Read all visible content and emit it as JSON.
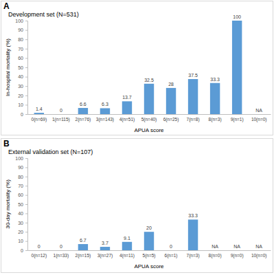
{
  "chart_data": [
    {
      "type": "bar",
      "annotations": [
        {
          "text": "A"
        }
      ],
      "title": "Development set (N=531)",
      "y_label": "In-hospital mortality (%)",
      "x_label": "APUA score",
      "categories": [
        "0(n=69)",
        "1(n=115)",
        "2(n=76)",
        "3(n=143)",
        "4(n=51)",
        "5(n=40)",
        "6(n=25)",
        "7(n=8)",
        "8(n=3)",
        "9(n=1)",
        "10(n=0)"
      ],
      "values": [
        1.4,
        0,
        6.6,
        6.3,
        13.7,
        32.5,
        28,
        37.5,
        33.3,
        100,
        null
      ],
      "value_labels": [
        "1.4",
        "0",
        "6.6",
        "6.3",
        "13.7",
        "32.5",
        "28",
        "37.5",
        "33.3",
        "100",
        "NA"
      ],
      "color": "#5b9bd5",
      "ylim": [
        0,
        100
      ],
      "yticks": [
        0,
        10,
        20,
        30,
        40,
        50,
        60,
        70,
        80,
        90,
        100
      ],
      "data_labels": true,
      "grid": false
    },
    {
      "type": "bar",
      "annotations": [
        {
          "text": "B"
        }
      ],
      "title": "External validation set (N=107)",
      "y_label": "30-day mortality (%)",
      "x_label": "APUA score",
      "categories": [
        "0(n=12)",
        "1(n=33)",
        "2(n=15)",
        "3(n=27)",
        "4(n=11)",
        "5(n=5)",
        "6(n=1)",
        "7(n=3)",
        "8(n=0)",
        "9(n=0)",
        "10(n=0)"
      ],
      "values": [
        0,
        0,
        6.7,
        3.7,
        9.1,
        20,
        0,
        33.3,
        null,
        null,
        null
      ],
      "value_labels": [
        "0",
        "0",
        "6.7",
        "3.7",
        "9.1",
        "20",
        "0",
        "33.3",
        "NA",
        "NA",
        "NA"
      ],
      "color": "#5b9bd5",
      "ylim": [
        0,
        100
      ],
      "yticks": [
        0,
        10,
        20,
        30,
        40,
        50,
        60,
        70,
        80,
        90,
        100
      ],
      "data_labels": true,
      "grid": false
    }
  ]
}
